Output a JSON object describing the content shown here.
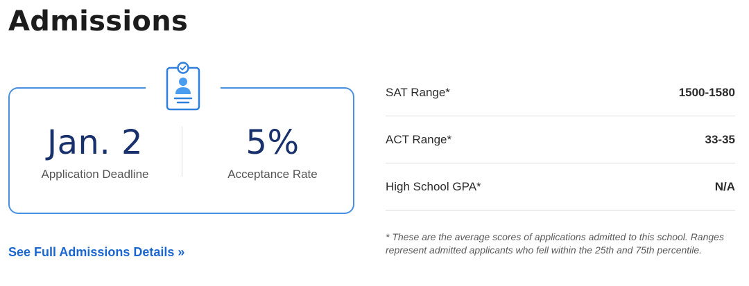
{
  "header": {
    "title": "Admissions"
  },
  "stats_card": {
    "icon": "id-badge-icon",
    "deadline": {
      "value": "Jan. 2",
      "label": "Application Deadline"
    },
    "acceptance": {
      "value": "5%",
      "label": "Acceptance Rate"
    }
  },
  "details_link": {
    "label": "See Full Admissions Details »"
  },
  "scores": {
    "rows": [
      {
        "label": "SAT Range*",
        "value": "1500-1580"
      },
      {
        "label": "ACT Range*",
        "value": "33-35"
      },
      {
        "label": "High School GPA*",
        "value": "N/A"
      }
    ],
    "footnote": "* These are the average scores of applications admitted to this school. Ranges represent admitted applicants who fell within the 25th and 75th percentile."
  },
  "colors": {
    "accent": "#4a90e2",
    "link": "#1a66d0",
    "stat_text": "#18306b",
    "divider": "#dcdcdc"
  }
}
